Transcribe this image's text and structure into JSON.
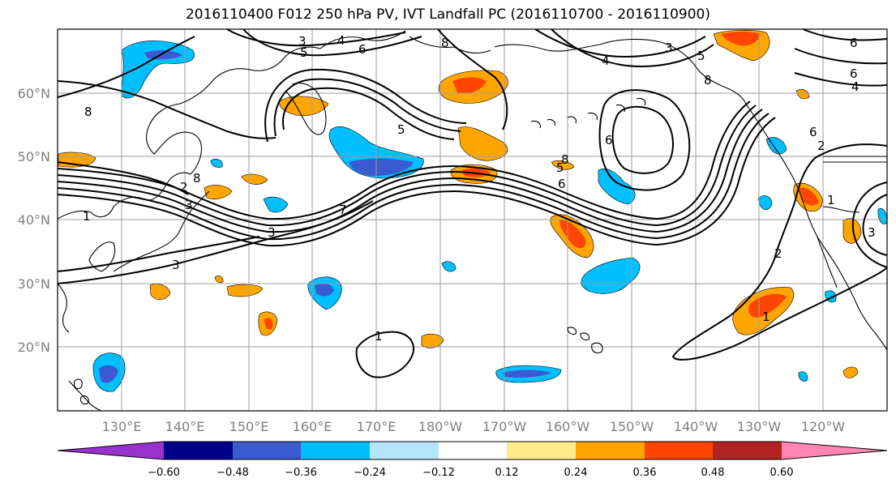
{
  "title": "2016110400 F012 250 hPa PV, IVT Landfall PC (2016110700 - 2016110900)",
  "lat_labels": [
    "60°N",
    "50°N",
    "40°N",
    "30°N",
    "20°N"
  ],
  "lon_labels": [
    "130°E",
    "140°E",
    "150°E",
    "160°E",
    "170°E",
    "180°W",
    "170°W",
    "160°W",
    "150°W",
    "140°W",
    "130°W",
    "120°W"
  ],
  "colorbar": {
    "colors": [
      "#9932cc",
      "#00008b",
      "#3a5bd0",
      "#00bfff",
      "#b3e5fc",
      "#ffffff",
      "#ffec8b",
      "#ffa500",
      "#ff4500",
      "#b22222",
      "#ff85b3"
    ],
    "ticks": [
      "−0.60",
      "−0.48",
      "−0.36",
      "−0.24",
      "−0.12",
      "0.12",
      "0.24",
      "0.36",
      "0.48",
      "0.60"
    ]
  },
  "contour_labels": [
    "3",
    "4",
    "5",
    "6",
    "8",
    "3",
    "4",
    "5",
    "6",
    "8",
    "6",
    "5",
    "6",
    "4",
    "8",
    "1",
    "3",
    "3",
    "2",
    "3",
    "7",
    "8",
    "5",
    "6",
    "8",
    "6",
    "2",
    "1",
    "2",
    "1",
    "1",
    "3"
  ],
  "colors": {
    "contour": "#000000",
    "coast": "#000000",
    "grid": "#9e9e9e"
  }
}
